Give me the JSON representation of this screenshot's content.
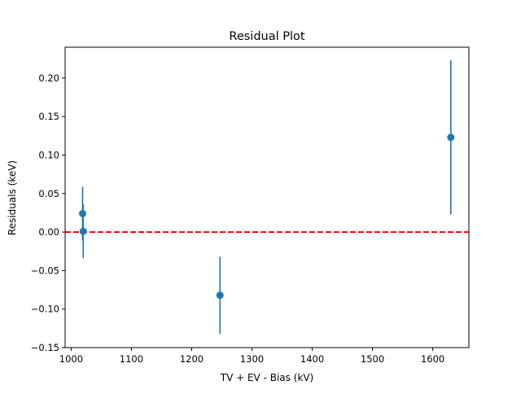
{
  "chart_data": {
    "type": "scatter",
    "title": "Residual Plot",
    "xlabel": "TV + EV - Bias (kV)",
    "ylabel": "Residuals (keV)",
    "xlim": [
      990,
      1660
    ],
    "ylim": [
      -0.15,
      0.24
    ],
    "xticks": [
      1000,
      1100,
      1200,
      1300,
      1400,
      1500,
      1600
    ],
    "yticks": [
      -0.15,
      -0.1,
      -0.05,
      0.0,
      0.05,
      0.1,
      0.15,
      0.2
    ],
    "ytick_labels": [
      "−0.15",
      "−0.10",
      "−0.05",
      "0.00",
      "0.05",
      "0.10",
      "0.15",
      "0.20"
    ],
    "series": [
      {
        "name": "residuals",
        "color": "#1f77b4",
        "points": [
          {
            "x": 1019,
            "y": 0.024,
            "err": 0.035
          },
          {
            "x": 1020,
            "y": 0.001,
            "err": 0.035
          },
          {
            "x": 1247,
            "y": -0.082,
            "err": 0.05
          },
          {
            "x": 1630,
            "y": 0.123,
            "err": 0.1
          }
        ]
      }
    ],
    "reference_line": {
      "y": 0.0,
      "color": "#ff0000",
      "style": "dashed"
    }
  }
}
